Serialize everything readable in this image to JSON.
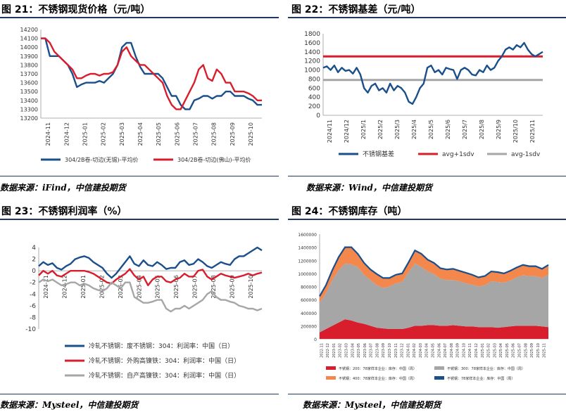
{
  "panels": [
    {
      "title": "图 21：不锈钢现货价格（元/吨）",
      "source": "数据来源：iFind，中信建投期货"
    },
    {
      "title": "图 22：不锈钢基差（元/吨）",
      "source": "数据来源：Wind，中信建投期货"
    },
    {
      "title": "图 23：不锈钢利润率（%）",
      "source": "数据来源：Mysteel，中信建投期货"
    },
    {
      "title": "图 24：不锈钢库存（吨）",
      "source": "数据来源：Mysteel，中信建投期货"
    }
  ],
  "chart_data": [
    {
      "type": "line",
      "ylim": [
        13200,
        14200
      ],
      "yticks": [
        13200,
        13300,
        13400,
        13500,
        13600,
        13700,
        13800,
        13900,
        14000,
        14100,
        14200
      ],
      "xticks": [
        "2024-11",
        "2024-12",
        "2025-01",
        "2025-02",
        "2025-03",
        "2025-04",
        "2025-05",
        "2025-06",
        "2025-07",
        "2025-08",
        "2025-09",
        "2025-10"
      ],
      "series": [
        {
          "name": "304/2B卷-切边(无锡)-平均价",
          "color": "#1a4f8b",
          "values": [
            14100,
            14100,
            13900,
            13900,
            13900,
            13850,
            13800,
            13700,
            13550,
            13580,
            13600,
            13600,
            13600,
            13620,
            13600,
            13650,
            13700,
            13800,
            14000,
            14050,
            14050,
            13900,
            13780,
            13700,
            13700,
            13700,
            13700,
            13650,
            13550,
            13450,
            13450,
            13350,
            13300,
            13300,
            13400,
            13420,
            13450,
            13450,
            13420,
            13450,
            13450,
            13500,
            13500,
            13450,
            13450,
            13450,
            13420,
            13400,
            13350,
            13350
          ]
        },
        {
          "name": "304/2B卷-切边(佛山)-平均价",
          "color": "#d81e2c",
          "values": [
            14100,
            14100,
            14050,
            13950,
            13900,
            13850,
            13800,
            13750,
            13650,
            13650,
            13680,
            13700,
            13700,
            13680,
            13700,
            13700,
            13720,
            13800,
            13950,
            14000,
            13900,
            13850,
            13800,
            13800,
            13750,
            13700,
            13650,
            13600,
            13450,
            13350,
            13300,
            13300,
            13400,
            13500,
            13600,
            13750,
            13800,
            13650,
            13620,
            13750,
            13700,
            13600,
            13600,
            13500,
            13500,
            13500,
            13480,
            13450,
            13400,
            13400
          ]
        }
      ]
    },
    {
      "type": "line",
      "ylim": [
        0,
        1800
      ],
      "yticks": [
        0,
        200,
        400,
        600,
        800,
        1000,
        1200,
        1400,
        1600,
        1800
      ],
      "xticks": [
        "2024/11",
        "2024/12",
        "2025/1",
        "2025/2",
        "2025/3",
        "2025/4",
        "2025/5",
        "2025/6",
        "2025/7",
        "2025/8",
        "2025/9",
        "2025/10",
        "2025/11"
      ],
      "series": [
        {
          "name": "不锈钢基差",
          "color": "#1a4f8b",
          "values": [
            1050,
            1080,
            1000,
            1100,
            950,
            1050,
            980,
            1000,
            920,
            1050,
            900,
            600,
            500,
            650,
            700,
            550,
            600,
            500,
            700,
            550,
            650,
            600,
            500,
            300,
            250,
            400,
            600,
            700,
            1050,
            1100,
            950,
            1000,
            900,
            1050,
            1020,
            1000,
            800,
            1000,
            1050,
            1000,
            900,
            880,
            1000,
            950,
            1100,
            1000,
            1050,
            1200,
            1300,
            1450,
            1500,
            1450,
            1550,
            1500,
            1600,
            1450,
            1350,
            1300,
            1350,
            1400
          ]
        },
        {
          "name": "avg+1sdv",
          "color": "#d81e2c",
          "values": [
            1300
          ]
        },
        {
          "name": "avg-1sdv",
          "color": "#a6a6a6",
          "values": [
            780
          ]
        }
      ]
    },
    {
      "type": "line",
      "ylim": [
        -10,
        4
      ],
      "yticks": [
        -10,
        -8,
        -6,
        -4,
        -2,
        0,
        2,
        4
      ],
      "xticks": [
        "2024-11",
        "2024-12",
        "2025-01",
        "2025-02",
        "2025-03",
        "2025-04",
        "2025-05",
        "2025-06",
        "2025-07",
        "2025-08",
        "2025-09",
        "2025-10"
      ],
      "series": [
        {
          "name": "冷轧不锈钢：废不锈钢：304：利润率：中国（日）",
          "color": "#1a4f8b",
          "values": [
            0.8,
            1.5,
            1.0,
            1.3,
            0.5,
            0.2,
            0.8,
            1.2,
            2.0,
            2.3,
            2.5,
            2.2,
            1.5,
            1.0,
            0.5,
            -0.5,
            -1.2,
            -0.5,
            0.5,
            1.5,
            2.5,
            1.2,
            0.8,
            1.8,
            1.0,
            0.8,
            1.5,
            1.0,
            0.3,
            0.5,
            0.5,
            1.5,
            1.8,
            1.0,
            1.2,
            2.0,
            1.5,
            0.8,
            0.5,
            1.0,
            1.5,
            1.2,
            1.0,
            2.0,
            2.5,
            2.5,
            3.0,
            3.5,
            4.0,
            3.5
          ]
        },
        {
          "name": "冷轧不锈钢：外购高镍铁：304：利润率：中国（日）",
          "color": "#d81e2c",
          "values": [
            -0.8,
            0,
            -0.5,
            0,
            -0.8,
            -1.0,
            -0.5,
            0,
            0,
            0,
            0,
            -0.2,
            -0.5,
            -1.0,
            -1.5,
            -2.0,
            -2.2,
            -1.5,
            -1.0,
            -0.5,
            0.3,
            -0.8,
            -1.5,
            -1.0,
            -2.5,
            -1.5,
            -1.0,
            -1.0,
            -1.8,
            -2.0,
            -1.5,
            -1.2,
            -0.5,
            -1.0,
            -1.0,
            0,
            0.2,
            -1.0,
            -1.5,
            -1.0,
            -0.5,
            -0.8,
            -1.0,
            -1.2,
            -1.0,
            -0.8,
            -0.5,
            -0.8,
            -0.5,
            -0.3
          ]
        },
        {
          "name": "冷轧不锈钢：自产高镍铁：304：利润率：中国（日）",
          "color": "#a6a6a6",
          "values": [
            -2.0,
            -1.5,
            -1.8,
            -1.5,
            -2.0,
            -2.5,
            -2.3,
            -2.0,
            -2.0,
            -2.5,
            -2.2,
            -2.5,
            -3.0,
            -3.3,
            -3.5,
            -3.0,
            -2.0,
            -2.5,
            -3.0,
            -2.0,
            -2.0,
            -4.5,
            -5.0,
            -5.5,
            -5.5,
            -5.3,
            -5.0,
            -5.0,
            -6.5,
            -7.0,
            -6.5,
            -6.5,
            -6.0,
            -6.5,
            -6.0,
            -5.5,
            -5.0,
            -4.0,
            -3.5,
            -4.5,
            -5.0,
            -5.0,
            -5.3,
            -5.5,
            -6.0,
            -6.2,
            -6.5,
            -6.5,
            -6.8,
            -6.5
          ]
        }
      ]
    },
    {
      "type": "area",
      "ylim": [
        0,
        1600000
      ],
      "yticks": [
        0,
        200000,
        400000,
        600000,
        800000,
        1000000,
        1200000,
        1400000,
        1600000
      ],
      "xticks": [
        "2022-11",
        "2022-12",
        "2023-01",
        "2023-02",
        "2023-03",
        "2023-04",
        "2023-05",
        "2023-06",
        "2023-07",
        "2023-08",
        "2023-09",
        "2023-10",
        "2023-11",
        "2023-12",
        "2024-01",
        "2024-02",
        "2024-03",
        "2024-04",
        "2024-05",
        "2024-06",
        "2024-07",
        "2024-08",
        "2024-09",
        "2024-10",
        "2024-11",
        "2024-12",
        "2025-01",
        "2025-02",
        "2025-03",
        "2025-04",
        "2025-05",
        "2025-06",
        "2025-07",
        "2025-08",
        "2025-09",
        "2025-10",
        "2025-11"
      ],
      "series": [
        {
          "name": "不锈钢：200：78家样本企业：库存：中国（周）",
          "color": "#d81e2c",
          "values": [
            100000,
            150000,
            200000,
            250000,
            300000,
            280000,
            250000,
            230000,
            200000,
            170000,
            160000,
            150000,
            150000,
            150000,
            170000,
            200000,
            200000,
            210000,
            210000,
            200000,
            200000,
            210000,
            200000,
            190000,
            190000,
            180000,
            180000,
            180000,
            170000,
            180000,
            190000,
            200000,
            200000,
            200000,
            200000,
            190000,
            180000
          ]
        },
        {
          "name": "不锈钢：300：78家样本企业：库存：中国（周）",
          "color": "#a6a6a6",
          "values": [
            450000,
            550000,
            700000,
            800000,
            850000,
            860000,
            850000,
            750000,
            700000,
            650000,
            620000,
            650000,
            700000,
            720000,
            850000,
            950000,
            900000,
            820000,
            780000,
            720000,
            700000,
            690000,
            680000,
            660000,
            640000,
            620000,
            640000,
            700000,
            700000,
            680000,
            700000,
            740000,
            770000,
            760000,
            760000,
            740000,
            800000
          ]
        },
        {
          "name": "不锈钢：400：78家样本企业：库存：中国（周）",
          "color": "#f4874b",
          "values": [
            100000,
            120000,
            150000,
            200000,
            250000,
            260000,
            200000,
            180000,
            160000,
            170000,
            150000,
            130000,
            130000,
            130000,
            150000,
            200000,
            200000,
            180000,
            170000,
            160000,
            160000,
            170000,
            160000,
            160000,
            150000,
            140000,
            140000,
            150000,
            150000,
            140000,
            150000,
            150000,
            160000,
            150000,
            150000,
            140000,
            150000
          ]
        },
        {
          "name": "不锈钢：78家样本企业：库存：中国（周）",
          "color": "#1a4f8b",
          "values": [
            650000,
            820000,
            1050000,
            1250000,
            1400000,
            1400000,
            1300000,
            1160000,
            1060000,
            990000,
            930000,
            930000,
            980000,
            1000000,
            1170000,
            1350000,
            1300000,
            1210000,
            1160000,
            1080000,
            1060000,
            1070000,
            1040000,
            1010000,
            980000,
            940000,
            960000,
            1030000,
            1020000,
            1000000,
            1040000,
            1090000,
            1130000,
            1110000,
            1110000,
            1070000,
            1130000
          ]
        }
      ]
    }
  ]
}
